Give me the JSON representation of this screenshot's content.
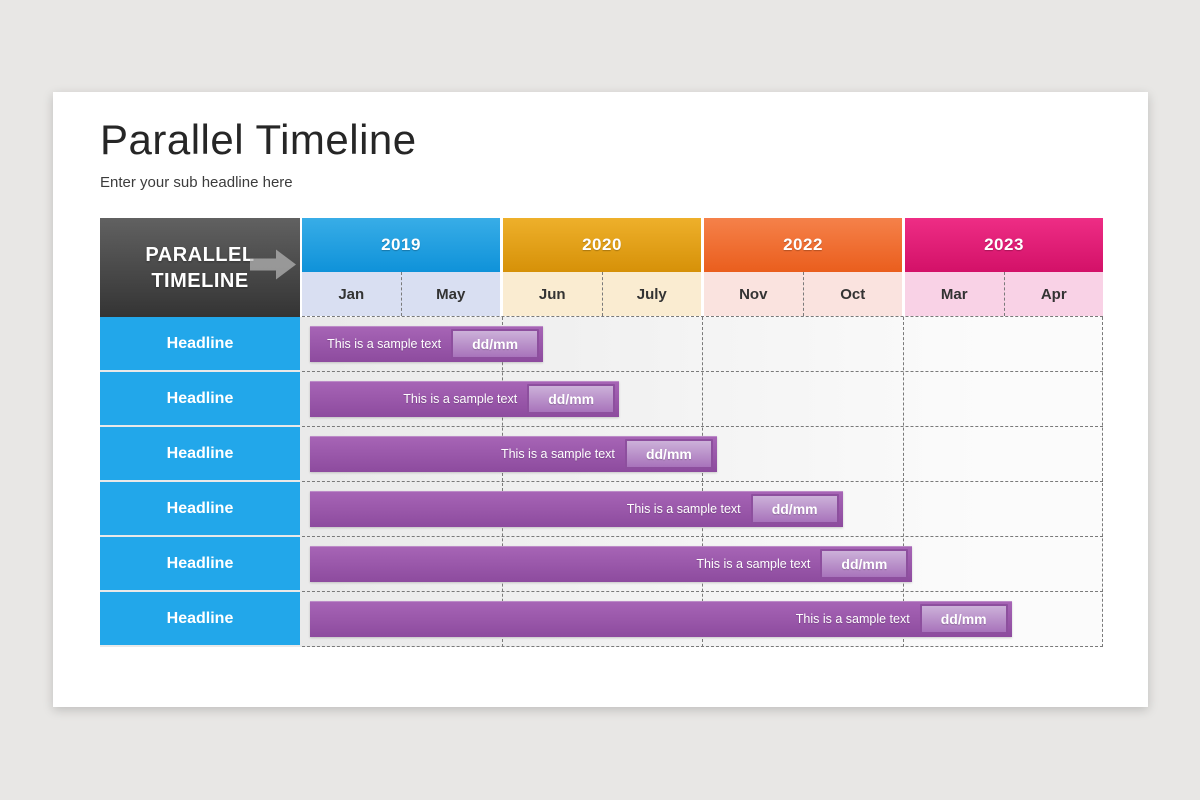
{
  "slide": {
    "title": "Parallel Timeline",
    "subtitle": "Enter your sub headline here"
  },
  "table": {
    "corner": {
      "line1": "PARALLEL",
      "line2": "TIMELINE",
      "gradient": {
        "top": "#616161",
        "bottom": "#343434"
      }
    },
    "years": [
      {
        "label": "2019",
        "gradient": {
          "top": "#38ade7",
          "bottom": "#0f92d9"
        },
        "month_bg": "#d9dff2",
        "months": [
          {
            "label": "Jan"
          },
          {
            "label": "May"
          }
        ]
      },
      {
        "label": "2020",
        "gradient": {
          "top": "#eeb02b",
          "bottom": "#d69108"
        },
        "month_bg": "#faecd1",
        "months": [
          {
            "label": "Jun"
          },
          {
            "label": "July"
          }
        ]
      },
      {
        "label": "2022",
        "gradient": {
          "top": "#f5814a",
          "bottom": "#ea5e1d"
        },
        "month_bg": "#fae3df",
        "months": [
          {
            "label": "Nov"
          },
          {
            "label": "Oct"
          }
        ]
      },
      {
        "label": "2023",
        "gradient": {
          "top": "#ee2d85",
          "bottom": "#d31168"
        },
        "month_bg": "#f9d2e6",
        "months": [
          {
            "label": "Mar"
          },
          {
            "label": "Apr"
          }
        ]
      }
    ],
    "rows": [
      {
        "headline": "Headline",
        "bar_text": "This is a sample text",
        "date": "dd/mm",
        "bar_width_pct": 29.1
      },
      {
        "headline": "Headline",
        "bar_text": "This is a sample text",
        "date": "dd/mm",
        "bar_width_pct": 38.6
      },
      {
        "headline": "Headline",
        "bar_text": "This is a sample text",
        "date": "dd/mm",
        "bar_width_pct": 50.8
      },
      {
        "headline": "Headline",
        "bar_text": "This is a sample text",
        "date": "dd/mm",
        "bar_width_pct": 66.5
      },
      {
        "headline": "Headline",
        "bar_text": "This is a sample text",
        "date": "dd/mm",
        "bar_width_pct": 75.2
      },
      {
        "headline": "Headline",
        "bar_text": "This is a sample text",
        "date": "dd/mm",
        "bar_width_pct": 87.6
      }
    ],
    "colors": {
      "headline_bg": "#22a7ea",
      "bar": {
        "top": "#a765b6",
        "bottom": "#8d4b9e"
      },
      "badge": {
        "top": "#ccb1d9",
        "bottom": "#a873bb"
      },
      "badge_border": "#8d4f9e",
      "grid_line": "#7a7a7a"
    }
  }
}
